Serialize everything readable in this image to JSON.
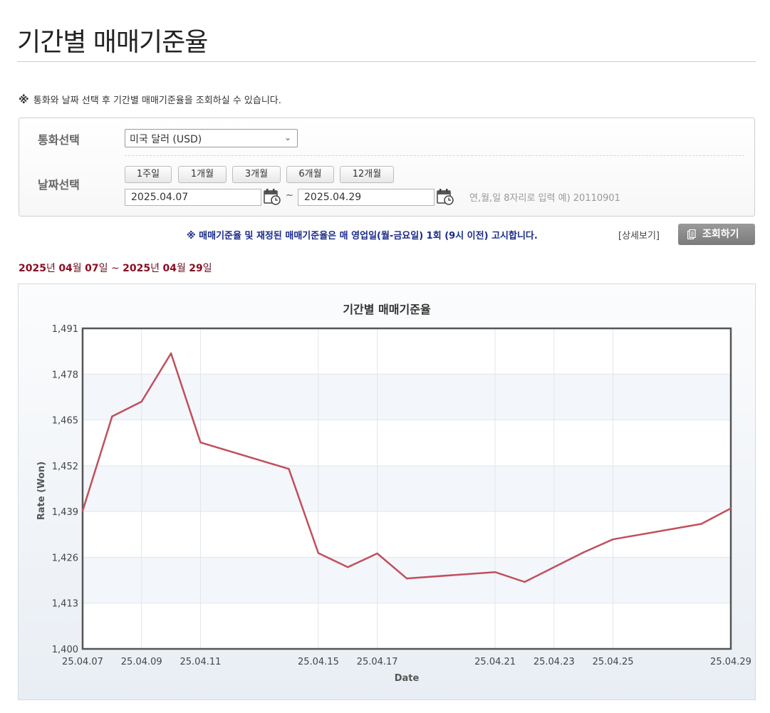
{
  "page": {
    "title": "기간별 매매기준율",
    "notice_mark": "※",
    "notice": "통화와 날짜 선택 후 기간별 매매기준율을 조회하실 수 있습니다."
  },
  "search": {
    "currency_label": "통화선택",
    "currency_value": "미국 달러 (USD)",
    "date_label": "날짜선택",
    "period_buttons": [
      "1주일",
      "1개월",
      "3개월",
      "6개월",
      "12개월"
    ],
    "start_date": "2025.04.07",
    "end_date": "2025.04.29",
    "tilde": "~",
    "date_hint": "연,월,일 8자리로 입력 예) 20110901"
  },
  "announce": {
    "text": "※ 매매기준율 및 재정된 매매기준율은 매 영업일(월-금요일) 1회 (9시 이전) 고시합니다.",
    "detail_link": "[상세보기]",
    "query_button": "조회하기"
  },
  "range": {
    "y1": "2025",
    "y_suffix1": "년 ",
    "m1": "04",
    "m_suffix1": "월 ",
    "d1": "07",
    "d_suffix1": "일",
    "sep": " ~ ",
    "y2": "2025",
    "y_suffix2": "년 ",
    "m2": "04",
    "m_suffix2": "월 ",
    "d2": "29",
    "d_suffix2": "일"
  },
  "colors": {
    "line": "#c0505e",
    "range_number": "#8a0f24",
    "announce": "#1a2a8a"
  },
  "chart_data": {
    "type": "line",
    "title": "기간별 매매기준율",
    "xlabel": "Date",
    "ylabel": "Rate (Won)",
    "ylim": [
      1400,
      1491
    ],
    "yticks": [
      "1,400",
      "1,413",
      "1,426",
      "1,439",
      "1,452",
      "1,465",
      "1,478",
      "1,491"
    ],
    "ytick_values": [
      1400,
      1413,
      1426,
      1439,
      1452,
      1465,
      1478,
      1491
    ],
    "xticks": [
      "25.04.07",
      "25.04.09",
      "25.04.11",
      "25.04.15",
      "25.04.17",
      "25.04.21",
      "25.04.23",
      "25.04.25",
      "25.04.29"
    ],
    "grid": true,
    "series": [
      {
        "x": [
          "25.04.07",
          "25.04.08",
          "25.04.09",
          "25.04.10",
          "25.04.11",
          "25.04.14",
          "25.04.15",
          "25.04.16",
          "25.04.17",
          "25.04.18",
          "25.04.21",
          "25.04.22",
          "25.04.23",
          "25.04.24",
          "25.04.25",
          "25.04.28",
          "25.04.29"
        ],
        "values": [
          1439.2,
          1466.0,
          1470.2,
          1483.9,
          1458.6,
          1451.1,
          1427.2,
          1423.2,
          1427.1,
          1420.0,
          1421.8,
          1419.0,
          1423.2,
          1427.4,
          1431.1,
          1435.5,
          1439.9
        ]
      }
    ]
  }
}
